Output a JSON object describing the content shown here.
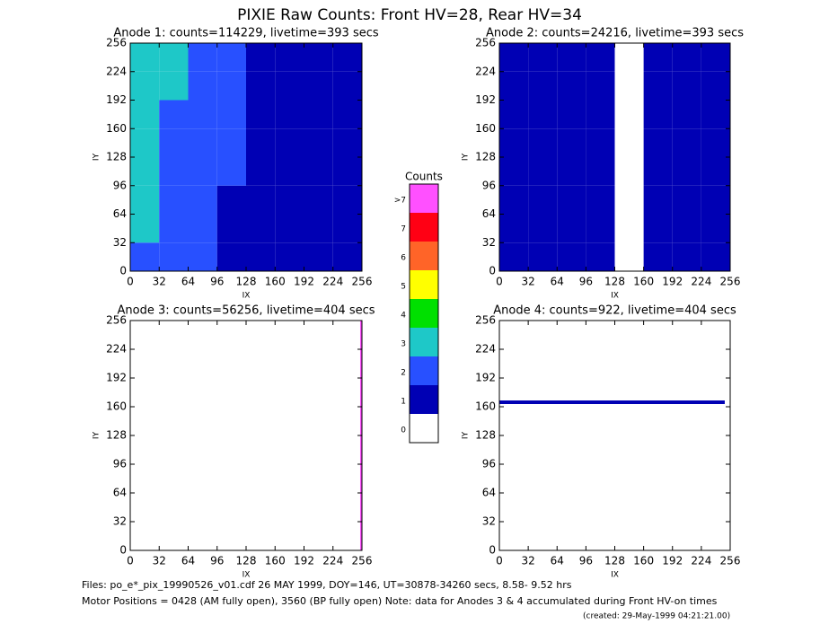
{
  "title": "PIXIE Raw Counts:  Front HV=28, Rear HV=34",
  "chart_data": [
    {
      "type": "heatmap",
      "title": "Anode 1: counts=114229, livetime=393 secs",
      "xlabel": "IX",
      "ylabel": "IY",
      "xlim": [
        0,
        256
      ],
      "ylim": [
        0,
        256
      ],
      "xticks": [
        0,
        32,
        64,
        96,
        128,
        160,
        192,
        224,
        256
      ],
      "yticks": [
        0,
        32,
        64,
        96,
        128,
        160,
        192,
        224,
        256
      ],
      "xbins": [
        0,
        32,
        64,
        96,
        128,
        160,
        192,
        224,
        256
      ],
      "ybins": [
        0,
        32,
        64,
        96,
        128,
        160,
        192,
        224,
        256
      ],
      "z": [
        [
          2,
          2,
          2,
          1,
          1,
          1,
          1,
          1
        ],
        [
          3,
          2,
          2,
          1,
          1,
          1,
          1,
          1
        ],
        [
          3,
          2,
          2,
          1,
          1,
          1,
          1,
          1
        ],
        [
          3,
          2,
          2,
          2,
          1,
          1,
          1,
          1
        ],
        [
          3,
          2,
          2,
          2,
          1,
          1,
          1,
          1
        ],
        [
          3,
          2,
          2,
          2,
          1,
          1,
          1,
          1
        ],
        [
          3,
          3,
          2,
          2,
          1,
          1,
          1,
          1
        ],
        [
          3,
          3,
          2,
          2,
          1,
          1,
          1,
          1
        ]
      ]
    },
    {
      "type": "heatmap",
      "title": "Anode 2: counts=24216, livetime=393 secs",
      "xlabel": "IX",
      "ylabel": "IY",
      "xlim": [
        0,
        256
      ],
      "ylim": [
        0,
        256
      ],
      "xticks": [
        0,
        32,
        64,
        96,
        128,
        160,
        192,
        224,
        256
      ],
      "yticks": [
        0,
        32,
        64,
        96,
        128,
        160,
        192,
        224,
        256
      ],
      "xbins": [
        0,
        32,
        64,
        96,
        128,
        160,
        192,
        224,
        256
      ],
      "ybins": [
        0,
        32,
        64,
        96,
        128,
        160,
        192,
        224,
        256
      ],
      "z": [
        [
          1,
          1,
          1,
          1,
          0,
          1,
          1,
          1
        ],
        [
          1,
          1,
          1,
          1,
          0,
          1,
          1,
          1
        ],
        [
          1,
          1,
          1,
          1,
          0,
          1,
          1,
          1
        ],
        [
          1,
          1,
          1,
          1,
          0,
          1,
          1,
          1
        ],
        [
          1,
          1,
          1,
          1,
          0,
          1,
          1,
          1
        ],
        [
          1,
          1,
          1,
          1,
          0,
          1,
          1,
          1
        ],
        [
          1,
          1,
          1,
          1,
          0,
          1,
          1,
          1
        ],
        [
          1,
          1,
          1,
          1,
          0,
          1,
          1,
          1
        ]
      ]
    },
    {
      "type": "heatmap",
      "title": "Anode 3: counts=56256, livetime=404 secs",
      "xlabel": "IX",
      "ylabel": "IY",
      "xlim": [
        0,
        256
      ],
      "ylim": [
        0,
        256
      ],
      "xticks": [
        0,
        32,
        64,
        96,
        128,
        160,
        192,
        224,
        256
      ],
      "yticks": [
        0,
        32,
        64,
        96,
        128,
        160,
        192,
        224,
        256
      ],
      "xbins": [
        0,
        254,
        256
      ],
      "ybins": [
        0,
        256
      ],
      "z": [
        [
          0,
          100
        ]
      ]
    },
    {
      "type": "heatmap",
      "title": "Anode 4: counts=922, livetime=404 secs",
      "xlabel": "IX",
      "ylabel": "IY",
      "xlim": [
        0,
        256
      ],
      "ylim": [
        0,
        256
      ],
      "xticks": [
        0,
        32,
        64,
        96,
        128,
        160,
        192,
        224,
        256
      ],
      "yticks": [
        0,
        32,
        64,
        96,
        128,
        160,
        192,
        224,
        256
      ],
      "xbins": [
        0,
        250,
        256
      ],
      "ybins": [
        0,
        163,
        167,
        256
      ],
      "z": [
        [
          0,
          0
        ],
        [
          1,
          0
        ],
        [
          0,
          0
        ]
      ]
    }
  ],
  "colorbar": {
    "title": "Counts",
    "labels": [
      "0",
      "1",
      "2",
      "3",
      "4",
      "5",
      "6",
      "7",
      ">7"
    ],
    "colors": [
      "#ffffff",
      "#0000b4",
      "#2850ff",
      "#1ec8c8",
      "#00e000",
      "#ffff00",
      "#ff6428",
      "#ff0014",
      "#ff50ff"
    ]
  },
  "footer": {
    "files": "Files: po_e*_pix_19990526_v01.cdf    26 MAY 1999, DOY=146, UT=30878-34260 secs,  8.58- 9.52 hrs",
    "motor": "Motor Positions = 0428 (AM fully open), 3560 (BP fully open)    Note: data for Anodes 3 & 4 accumulated during Front HV-on times",
    "created": "(created: 29-May-1999 04:21:21.00)"
  }
}
